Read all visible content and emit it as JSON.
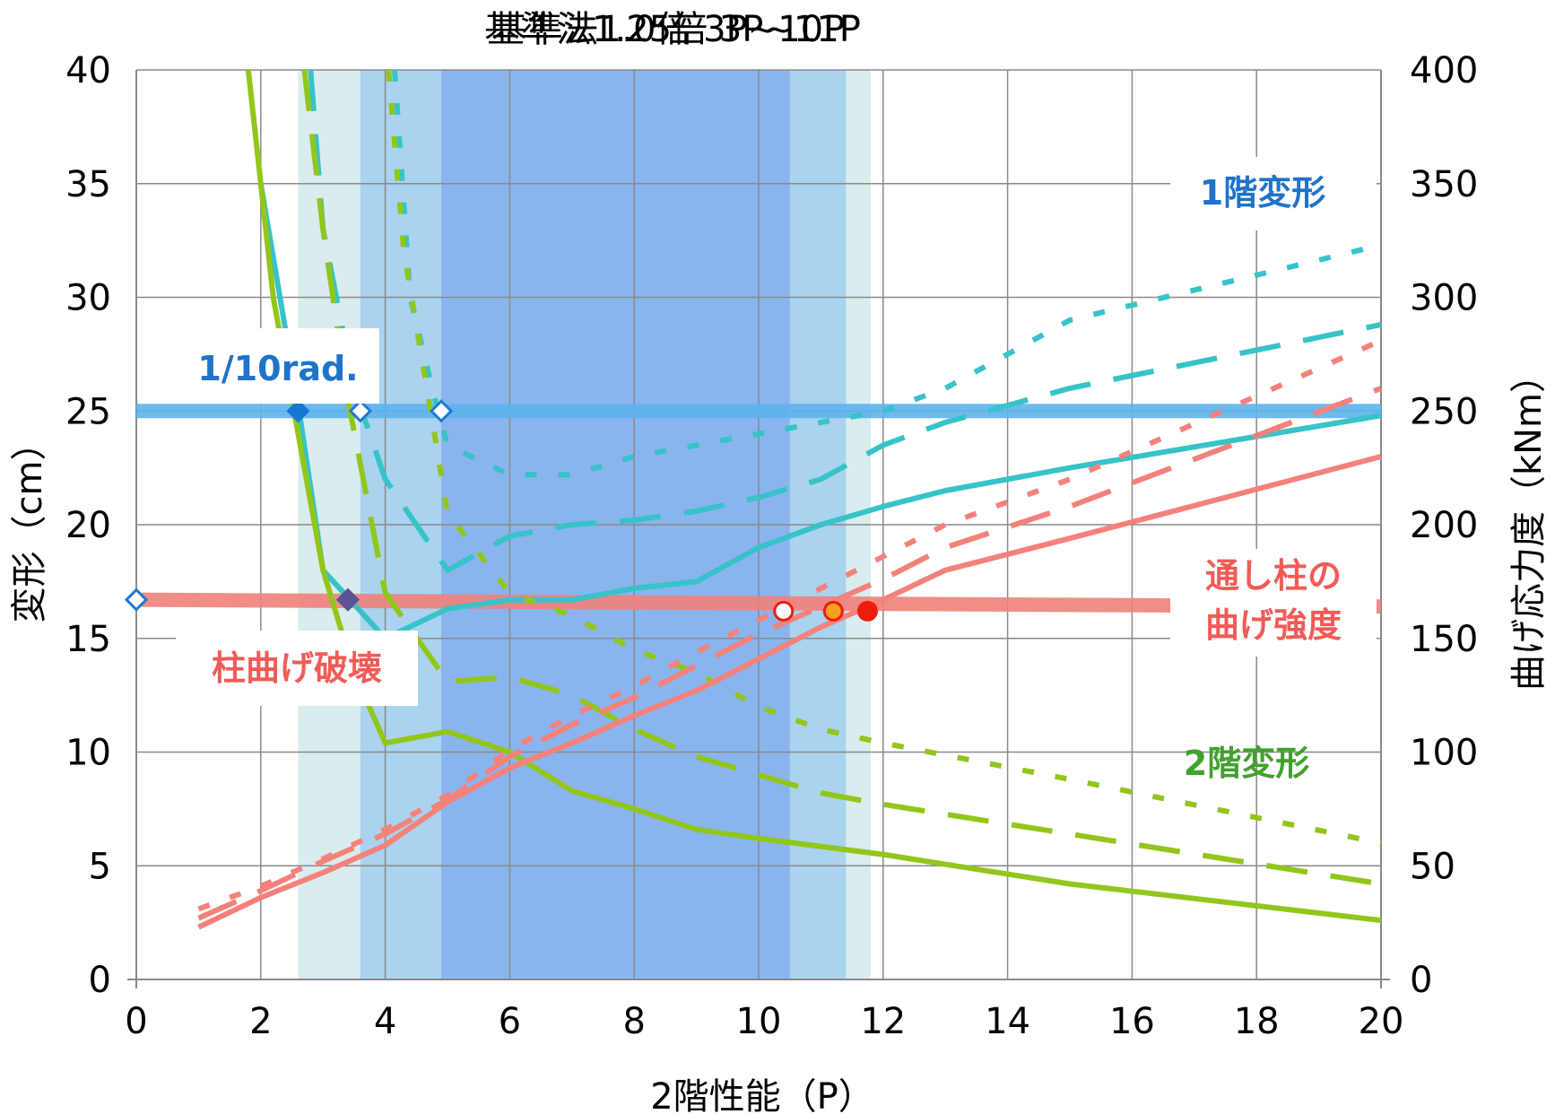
{
  "chart_data": {
    "type": "line",
    "title_overlay": [
      "基準法1.0倍 3P~10P",
      "基準法1.25倍 3P~11P"
    ],
    "xlabel": "2階性能（P）",
    "ylabel_left": "変形（cm）",
    "ylabel_right": "曲げ応力度（kNm）",
    "xlim": [
      0,
      20
    ],
    "ylim_left": [
      0,
      40
    ],
    "ylim_right": [
      0,
      400
    ],
    "x_ticks": [
      "0",
      "2",
      "4",
      "6",
      "8",
      "10",
      "12",
      "14",
      "16",
      "18",
      "20"
    ],
    "y_left_ticks": [
      "0",
      "5",
      "10",
      "15",
      "20",
      "25",
      "30",
      "35",
      "40"
    ],
    "y_right_ticks": [
      "0",
      "50",
      "100",
      "150",
      "200",
      "250",
      "300",
      "350",
      "400"
    ],
    "grid": true,
    "bands": [
      {
        "x0": 2.6,
        "x1": 11.8,
        "color": "#d9ecee"
      },
      {
        "x0": 3.6,
        "x1": 11.4,
        "color": "#a9d3ef"
      },
      {
        "x0": 4.9,
        "x1": 10.5,
        "color": "#8ab4ee"
      }
    ],
    "reference_lines": [
      {
        "axis": "left",
        "y0": 25,
        "y1": 25,
        "color": "#5cb2ec",
        "width": 16,
        "label": "1/10rad."
      },
      {
        "axis": "left",
        "y0": 16.7,
        "y1": 16.4,
        "color": "#f0817a",
        "width": 16,
        "label": "柱曲げ破壊"
      }
    ],
    "series": [
      {
        "group": "1st floor",
        "axis": "left",
        "dash": "solid",
        "color": "#37c3c8",
        "points": [
          [
            2,
            35
          ],
          [
            2.6,
            25.3
          ],
          [
            3,
            18
          ],
          [
            4,
            15
          ],
          [
            5,
            16.3
          ],
          [
            6,
            16.7
          ],
          [
            7,
            16.7
          ],
          [
            8,
            17.2
          ],
          [
            9,
            17.5
          ],
          [
            10,
            19
          ],
          [
            11,
            20
          ],
          [
            12,
            20.8
          ],
          [
            13,
            21.5
          ],
          [
            15,
            22.5
          ],
          [
            20,
            24.8
          ]
        ]
      },
      {
        "group": "1st floor",
        "axis": "left",
        "dash": "long",
        "color": "#37c3c8",
        "points": [
          [
            2.8,
            40
          ],
          [
            3,
            33
          ],
          [
            3.5,
            26
          ],
          [
            4,
            22
          ],
          [
            5,
            18
          ],
          [
            6,
            19.5
          ],
          [
            7,
            20
          ],
          [
            8,
            20.2
          ],
          [
            9,
            20.6
          ],
          [
            10,
            21.2
          ],
          [
            11,
            22
          ],
          [
            12,
            23.5
          ],
          [
            13,
            24.5
          ],
          [
            15,
            26
          ],
          [
            20,
            28.8
          ]
        ]
      },
      {
        "group": "1st floor",
        "axis": "left",
        "dash": "short",
        "color": "#37c3c8",
        "points": [
          [
            4.15,
            40
          ],
          [
            4.4,
            30
          ],
          [
            4.8,
            25.5
          ],
          [
            5,
            23.5
          ],
          [
            6,
            22.2
          ],
          [
            7,
            22.2
          ],
          [
            8,
            23
          ],
          [
            9,
            23.5
          ],
          [
            10,
            24
          ],
          [
            11,
            24.5
          ],
          [
            12,
            25
          ],
          [
            13,
            26
          ],
          [
            15,
            29
          ],
          [
            20,
            32.3
          ]
        ]
      },
      {
        "group": "2nd floor",
        "axis": "left",
        "dash": "solid",
        "color": "#92c61a",
        "points": [
          [
            1.8,
            40
          ],
          [
            2.2,
            30
          ],
          [
            3,
            18
          ],
          [
            3.5,
            13.5
          ],
          [
            4,
            10.4
          ],
          [
            5,
            10.9
          ],
          [
            6,
            10
          ],
          [
            7,
            8.3
          ],
          [
            8,
            7.5
          ],
          [
            9,
            6.6
          ],
          [
            10,
            6.2
          ],
          [
            12,
            5.5
          ],
          [
            15,
            4.2
          ],
          [
            20,
            2.6
          ]
        ]
      },
      {
        "group": "2nd floor",
        "axis": "left",
        "dash": "long",
        "color": "#92c61a",
        "points": [
          [
            2.7,
            40
          ],
          [
            3,
            33
          ],
          [
            3.4,
            25.5
          ],
          [
            4,
            17
          ],
          [
            5,
            13.1
          ],
          [
            6,
            13.3
          ],
          [
            7,
            12.5
          ],
          [
            8,
            11
          ],
          [
            9,
            9.8
          ],
          [
            10,
            9
          ],
          [
            11,
            8.2
          ],
          [
            12,
            7.7
          ],
          [
            15,
            6.4
          ],
          [
            20,
            4.2
          ]
        ]
      },
      {
        "group": "2nd floor",
        "axis": "left",
        "dash": "short",
        "color": "#92c61a",
        "points": [
          [
            4.05,
            40
          ],
          [
            4.3,
            32
          ],
          [
            4.7,
            25.5
          ],
          [
            5,
            20.5
          ],
          [
            6,
            17
          ],
          [
            7,
            16
          ],
          [
            8,
            14.5
          ],
          [
            9,
            13.5
          ],
          [
            10,
            12
          ],
          [
            11,
            11
          ],
          [
            12,
            10.4
          ],
          [
            15,
            8.8
          ],
          [
            20,
            6
          ]
        ]
      },
      {
        "group": "moment",
        "axis": "right",
        "dash": "solid",
        "color": "#f5817b",
        "points": [
          [
            1,
            23
          ],
          [
            2,
            36
          ],
          [
            3,
            47
          ],
          [
            4,
            59
          ],
          [
            5,
            78
          ],
          [
            6,
            93
          ],
          [
            7,
            104
          ],
          [
            8,
            116
          ],
          [
            9,
            127
          ],
          [
            10,
            141
          ],
          [
            11,
            155
          ],
          [
            12,
            167
          ],
          [
            13,
            180
          ],
          [
            15,
            194
          ],
          [
            20,
            230
          ]
        ]
      },
      {
        "group": "moment",
        "axis": "right",
        "dash": "long",
        "color": "#f5817b",
        "points": [
          [
            1,
            27
          ],
          [
            2,
            39
          ],
          [
            3,
            52
          ],
          [
            4,
            64
          ],
          [
            5,
            79
          ],
          [
            6,
            98
          ],
          [
            7,
            112
          ],
          [
            8,
            124
          ],
          [
            9,
            138
          ],
          [
            10,
            152
          ],
          [
            11,
            164
          ],
          [
            12,
            176
          ],
          [
            13,
            190
          ],
          [
            15,
            208
          ],
          [
            20,
            260
          ]
        ]
      },
      {
        "group": "moment",
        "axis": "right",
        "dash": "short",
        "color": "#f5817b",
        "points": [
          [
            1,
            31
          ],
          [
            2,
            41
          ],
          [
            3,
            53
          ],
          [
            4,
            66
          ],
          [
            5,
            81
          ],
          [
            6,
            101
          ],
          [
            7,
            116
          ],
          [
            8,
            129
          ],
          [
            9,
            144
          ],
          [
            10,
            158
          ],
          [
            11,
            172
          ],
          [
            12,
            186
          ],
          [
            13,
            200
          ],
          [
            15,
            220
          ],
          [
            20,
            281
          ]
        ]
      }
    ],
    "markers": [
      {
        "x": 2.6,
        "y": 25,
        "shape": "diamond",
        "fill": "#1478d4",
        "stroke": "#1478d4"
      },
      {
        "x": 3.6,
        "y": 25,
        "shape": "diamond",
        "fill": "#ffffff",
        "stroke": "#1f78d0"
      },
      {
        "x": 4.9,
        "y": 25,
        "shape": "diamond",
        "fill": "#ffffff",
        "stroke": "#1f78d0"
      },
      {
        "x": 0,
        "y": 16.7,
        "shape": "diamond",
        "fill": "#ffffff",
        "stroke": "#1f78d0"
      },
      {
        "x": 3.4,
        "y": 16.7,
        "shape": "diamond",
        "fill": "#5b5394",
        "stroke": "#5b5394"
      },
      {
        "x": 10.4,
        "y": 16.2,
        "shape": "circle",
        "fill": "#ffffff",
        "stroke": "#ee1c0d"
      },
      {
        "x": 11.2,
        "y": 16.2,
        "shape": "circle",
        "fill": "#f5a020",
        "stroke": "#ee1c0d"
      },
      {
        "x": 11.75,
        "y": 16.2,
        "shape": "circle",
        "fill": "#ee1c0d",
        "stroke": "#ee1c0d"
      }
    ],
    "annotations": [
      {
        "id": "label-1st-deform",
        "text": "1階変形",
        "color": "#1f73c9"
      },
      {
        "id": "label-rad",
        "text": "1/10rad.",
        "color": "#1f73c9"
      },
      {
        "id": "label-col-break",
        "text": "柱曲げ破壊",
        "color": "#f15b57"
      },
      {
        "id": "label-strength-1",
        "text": "通し柱の",
        "color": "#f15b57"
      },
      {
        "id": "label-strength-2",
        "text": "曲げ強度",
        "color": "#f15b57"
      },
      {
        "id": "label-2nd-deform",
        "text": "2階変形",
        "color": "#41a12e"
      }
    ]
  }
}
